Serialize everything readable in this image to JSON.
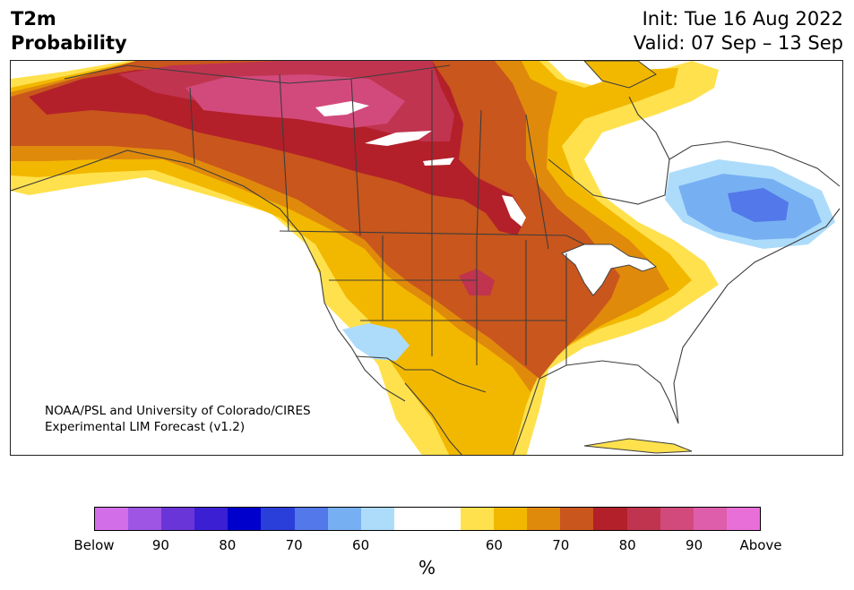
{
  "header": {
    "title_line1": "T2m",
    "title_line2": "Probability",
    "init_text": "Init: Tue 16 Aug 2022",
    "valid_text": "Valid: 07 Sep – 13 Sep"
  },
  "credit": {
    "line1": "NOAA/PSL and University of Colorado/CIRES",
    "line2": "Experimental LIM Forecast (v1.2)"
  },
  "colorbar": {
    "colors": [
      "#d36ee9",
      "#9e55e3",
      "#6a35d8",
      "#3a1fd3",
      "#0000cc",
      "#2a3fd9",
      "#5278ea",
      "#77b0f2",
      "#addcfb",
      "#ffffff",
      "#ffffff",
      "#ffe14d",
      "#f2b800",
      "#e08a0c",
      "#c9561c",
      "#b3202a",
      "#c0344f",
      "#d24a7c",
      "#de5eab",
      "#e96fd8"
    ],
    "tick_labels": [
      "Below",
      "90",
      "80",
      "70",
      "60",
      "60",
      "70",
      "80",
      "90",
      "Above"
    ],
    "unit": "%"
  },
  "legend_colors": {
    "above_60": "#ffe14d",
    "above_65": "#f2b800",
    "above_70": "#e08a0c",
    "above_75": "#c9561c",
    "above_80": "#b3202a",
    "above_85": "#c0344f",
    "above_90": "#d24a7c",
    "below_60": "#addcfb",
    "below_65": "#77b0f2",
    "below_70": "#5278ea"
  }
}
